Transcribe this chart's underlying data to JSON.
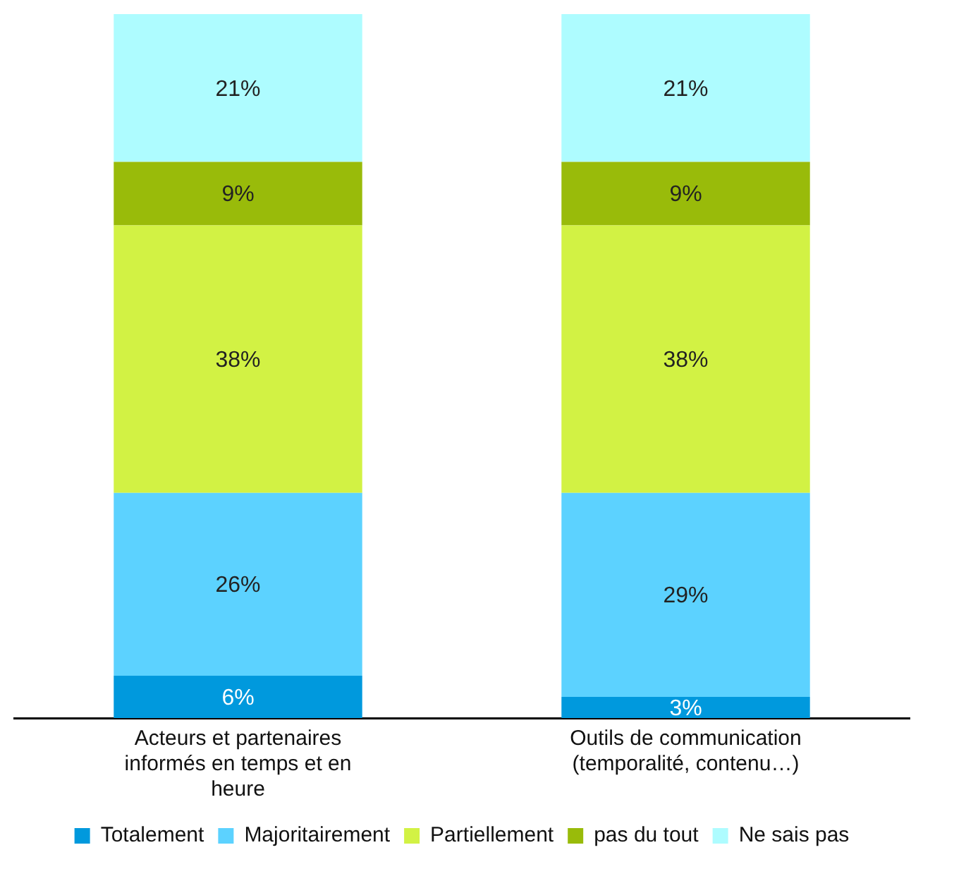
{
  "chart_data": {
    "type": "bar",
    "stacked": true,
    "categories": [
      "Acteurs et partenaires informés en temps et en heure",
      "Outils de communication (temporalité, contenu…)"
    ],
    "ylim": [
      0,
      100
    ],
    "tick_labels": "x",
    "legend": "bottom",
    "series": [
      {
        "name": "Totalement",
        "color": "#0099dd",
        "values": [
          6,
          3
        ],
        "value_labels": [
          "6%",
          "3%"
        ]
      },
      {
        "name": "Majoritairement",
        "color": "#5cd2ff",
        "values": [
          26,
          29
        ],
        "value_labels": [
          "26%",
          "29%"
        ]
      },
      {
        "name": "Partiellement",
        "color": "#d2f244",
        "values": [
          38,
          38
        ],
        "value_labels": [
          "38%",
          "38%"
        ]
      },
      {
        "name": "pas du tout",
        "color": "#99bb0a",
        "values": [
          9,
          9
        ],
        "value_labels": [
          "9%",
          "9%"
        ]
      },
      {
        "name": "Ne sais pas",
        "color": "#aefcff",
        "values": [
          21,
          21
        ],
        "value_labels": [
          "21%",
          "21%"
        ]
      }
    ]
  }
}
